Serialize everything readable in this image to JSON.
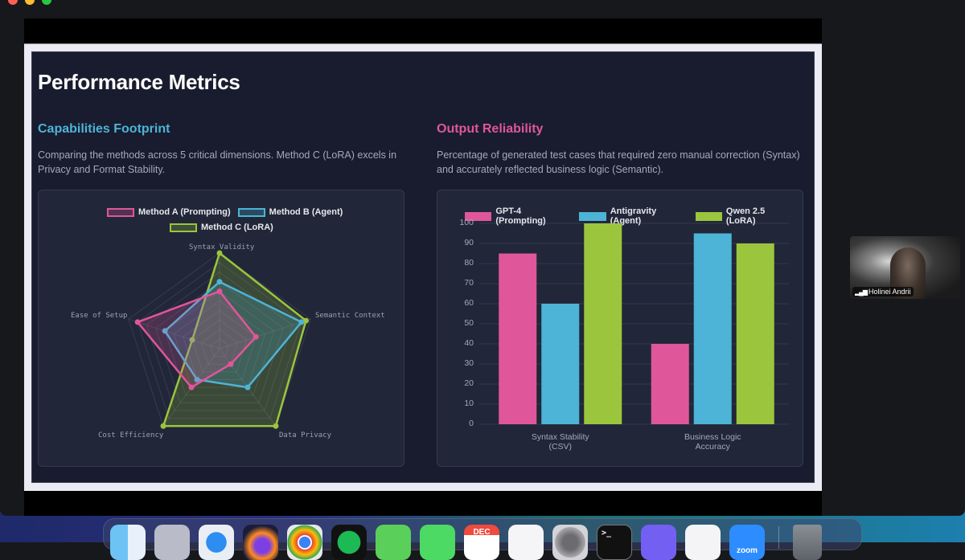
{
  "slide": {
    "title": "Performance Metrics",
    "left": {
      "heading": "Capabilities Footprint",
      "heading_color": "#4db4d7",
      "description": "Comparing the methods across 5 critical dimensions. Method C (LoRA) excels in Privacy and Format Stability."
    },
    "right": {
      "heading": "Output Reliability",
      "heading_color": "#e0569a",
      "description": "Percentage of generated test cases that required zero manual correction (Syntax) and accurately reflected business logic (Semantic)."
    }
  },
  "chart_data": [
    {
      "type": "radar",
      "title": "Capabilities Footprint",
      "axes": [
        "Syntax Validity",
        "Semantic Context",
        "Data Privacy",
        "Cost Efficiency",
        "Ease of Setup"
      ],
      "rlim": [
        0,
        100
      ],
      "legend_position": "top",
      "series": [
        {
          "name": "Method A (Prompting)",
          "color": "#e0569a",
          "values": [
            60,
            40,
            20,
            50,
            90
          ]
        },
        {
          "name": "Method B (Agent)",
          "color": "#4db4d7",
          "values": [
            70,
            90,
            50,
            40,
            60
          ]
        },
        {
          "name": "Method C (LoRA)",
          "color": "#9bc53d",
          "values": [
            100,
            95,
            100,
            100,
            30
          ]
        }
      ]
    },
    {
      "type": "bar",
      "title": "Output Reliability",
      "categories": [
        "Syntax Stability (CSV)",
        "Business Logic Accuracy"
      ],
      "category_lines": [
        [
          "Syntax Stability",
          "(CSV)"
        ],
        [
          "Business Logic",
          "Accuracy"
        ]
      ],
      "ylim": [
        0,
        100
      ],
      "yticks": [
        0,
        10,
        20,
        30,
        40,
        50,
        60,
        70,
        80,
        90,
        100
      ],
      "grid": true,
      "legend_position": "top",
      "series": [
        {
          "name": "GPT-4 (Prompting)",
          "color": "#e0569a",
          "values": [
            85,
            40
          ]
        },
        {
          "name": "Antigravity (Agent)",
          "color": "#4db4d7",
          "values": [
            60,
            95
          ]
        },
        {
          "name": "Qwen 2.5 (LoRA)",
          "color": "#9bc53d",
          "values": [
            100,
            90
          ]
        }
      ]
    }
  ],
  "video_tile": {
    "participant_name": "Holinei Andrii"
  },
  "dock": {
    "items": [
      "Finder",
      "Launchpad",
      "Safari",
      "Firefox",
      "Chrome",
      "Spotify",
      "Messages",
      "FaceTime",
      "Calendar",
      "Reminders",
      "System Settings",
      "Terminal",
      "Viber",
      "Preview",
      "Zoom",
      "Trash"
    ],
    "calendar_month": "DEC",
    "zoom_label": "zoom"
  }
}
